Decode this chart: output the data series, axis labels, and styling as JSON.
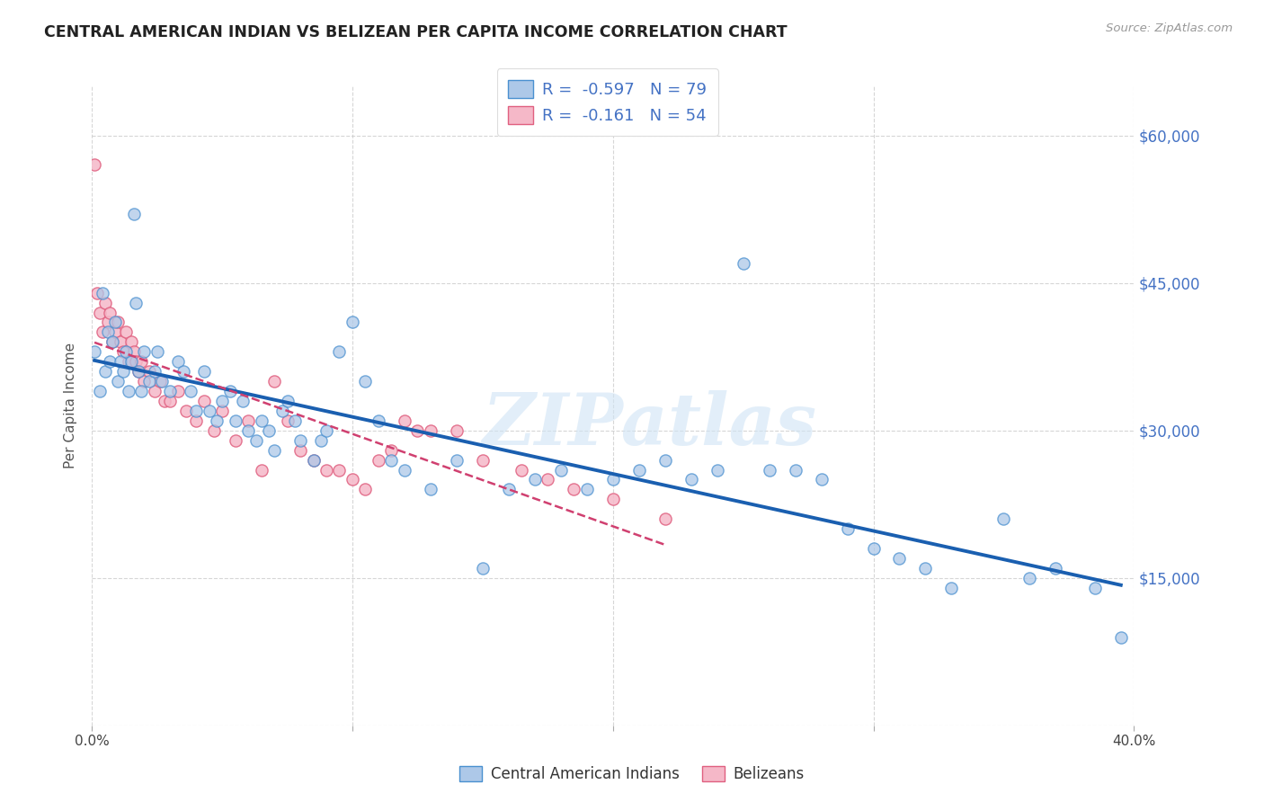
{
  "title": "CENTRAL AMERICAN INDIAN VS BELIZEAN PER CAPITA INCOME CORRELATION CHART",
  "source": "Source: ZipAtlas.com",
  "ylabel": "Per Capita Income",
  "xlim": [
    0.0,
    0.4
  ],
  "ylim": [
    0,
    65000
  ],
  "yticks": [
    0,
    15000,
    30000,
    45000,
    60000
  ],
  "ytick_labels": [
    "",
    "$15,000",
    "$30,000",
    "$45,000",
    "$60,000"
  ],
  "xticks": [
    0.0,
    0.1,
    0.2,
    0.3,
    0.4
  ],
  "xtick_labels": [
    "0.0%",
    "",
    "",
    "",
    "40.0%"
  ],
  "R_blue": -0.597,
  "N_blue": 79,
  "R_pink": -0.161,
  "N_pink": 54,
  "blue_color": "#adc8e8",
  "pink_color": "#f5b8c8",
  "blue_edge_color": "#4a90d0",
  "pink_edge_color": "#e06080",
  "blue_line_color": "#1a5fb0",
  "pink_line_color": "#d04070",
  "watermark": "ZIPatlas",
  "legend_label_blue": "Central American Indians",
  "legend_label_pink": "Belizeans",
  "blue_scatter_x": [
    0.001,
    0.003,
    0.004,
    0.005,
    0.006,
    0.007,
    0.008,
    0.009,
    0.01,
    0.011,
    0.012,
    0.013,
    0.014,
    0.015,
    0.016,
    0.017,
    0.018,
    0.019,
    0.02,
    0.022,
    0.024,
    0.025,
    0.027,
    0.03,
    0.033,
    0.035,
    0.038,
    0.04,
    0.043,
    0.045,
    0.048,
    0.05,
    0.053,
    0.055,
    0.058,
    0.06,
    0.063,
    0.065,
    0.068,
    0.07,
    0.073,
    0.075,
    0.078,
    0.08,
    0.085,
    0.088,
    0.09,
    0.095,
    0.1,
    0.105,
    0.11,
    0.115,
    0.12,
    0.13,
    0.14,
    0.15,
    0.16,
    0.17,
    0.18,
    0.19,
    0.2,
    0.21,
    0.22,
    0.23,
    0.24,
    0.25,
    0.26,
    0.27,
    0.28,
    0.29,
    0.3,
    0.31,
    0.32,
    0.33,
    0.35,
    0.36,
    0.37,
    0.385,
    0.395
  ],
  "blue_scatter_y": [
    38000,
    34000,
    44000,
    36000,
    40000,
    37000,
    39000,
    41000,
    35000,
    37000,
    36000,
    38000,
    34000,
    37000,
    52000,
    43000,
    36000,
    34000,
    38000,
    35000,
    36000,
    38000,
    35000,
    34000,
    37000,
    36000,
    34000,
    32000,
    36000,
    32000,
    31000,
    33000,
    34000,
    31000,
    33000,
    30000,
    29000,
    31000,
    30000,
    28000,
    32000,
    33000,
    31000,
    29000,
    27000,
    29000,
    30000,
    38000,
    41000,
    35000,
    31000,
    27000,
    26000,
    24000,
    27000,
    16000,
    24000,
    25000,
    26000,
    24000,
    25000,
    26000,
    27000,
    25000,
    26000,
    47000,
    26000,
    26000,
    25000,
    20000,
    18000,
    17000,
    16000,
    14000,
    21000,
    15000,
    16000,
    14000,
    9000
  ],
  "pink_scatter_x": [
    0.001,
    0.002,
    0.003,
    0.004,
    0.005,
    0.006,
    0.007,
    0.008,
    0.009,
    0.01,
    0.011,
    0.012,
    0.013,
    0.014,
    0.015,
    0.016,
    0.017,
    0.018,
    0.019,
    0.02,
    0.022,
    0.024,
    0.026,
    0.028,
    0.03,
    0.033,
    0.036,
    0.04,
    0.043,
    0.047,
    0.05,
    0.055,
    0.06,
    0.065,
    0.07,
    0.075,
    0.08,
    0.085,
    0.09,
    0.095,
    0.1,
    0.105,
    0.11,
    0.115,
    0.12,
    0.125,
    0.13,
    0.14,
    0.15,
    0.165,
    0.175,
    0.185,
    0.2,
    0.22
  ],
  "pink_scatter_y": [
    57000,
    44000,
    42000,
    40000,
    43000,
    41000,
    42000,
    39000,
    40000,
    41000,
    39000,
    38000,
    40000,
    37000,
    39000,
    38000,
    37000,
    36000,
    37000,
    35000,
    36000,
    34000,
    35000,
    33000,
    33000,
    34000,
    32000,
    31000,
    33000,
    30000,
    32000,
    29000,
    31000,
    26000,
    35000,
    31000,
    28000,
    27000,
    26000,
    26000,
    25000,
    24000,
    27000,
    28000,
    31000,
    30000,
    30000,
    30000,
    27000,
    26000,
    25000,
    24000,
    23000,
    21000
  ]
}
